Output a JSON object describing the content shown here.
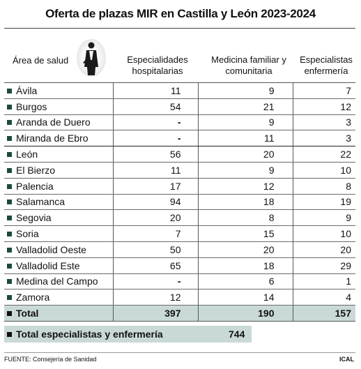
{
  "title": "Oferta de plazas MIR en Castilla y León 2023-2024",
  "headers": {
    "area": "Área de salud",
    "col1": "Especialidades hospitalarias",
    "col2": "Medicina familiar y comunitaria",
    "col3": "Especialistas enfermería"
  },
  "rows": [
    {
      "area": "Ávila",
      "hosp": "11",
      "mfyc": "9",
      "enf": "7"
    },
    {
      "area": "Burgos",
      "hosp": "54",
      "mfyc": "21",
      "enf": "12"
    },
    {
      "area": "Aranda de Duero",
      "hosp": "-",
      "mfyc": "9",
      "enf": "3"
    },
    {
      "area": "Miranda de Ebro",
      "hosp": "-",
      "mfyc": "11",
      "enf": "3"
    },
    {
      "area": "León",
      "hosp": "56",
      "mfyc": "20",
      "enf": "22"
    },
    {
      "area": "El Bierzo",
      "hosp": "11",
      "mfyc": "9",
      "enf": "10"
    },
    {
      "area": "Palencia",
      "hosp": "17",
      "mfyc": "12",
      "enf": "8"
    },
    {
      "area": "Salamanca",
      "hosp": "94",
      "mfyc": "18",
      "enf": "19"
    },
    {
      "area": "Segovia",
      "hosp": "20",
      "mfyc": "8",
      "enf": "9"
    },
    {
      "area": "Soria",
      "hosp": "7",
      "mfyc": "15",
      "enf": "10"
    },
    {
      "area": "Valladolid Oeste",
      "hosp": "50",
      "mfyc": "20",
      "enf": "20"
    },
    {
      "area": "Valladolid Este",
      "hosp": "65",
      "mfyc": "18",
      "enf": "29"
    },
    {
      "area": "Medina del Campo",
      "hosp": "-",
      "mfyc": "6",
      "enf": "1"
    },
    {
      "area": "Zamora",
      "hosp": "12",
      "mfyc": "14",
      "enf": "4"
    }
  ],
  "total": {
    "label": "Total",
    "hosp": "397",
    "mfyc": "190",
    "enf": "157"
  },
  "grand_total": {
    "label": "Total especialistas y enfermería",
    "value": "744"
  },
  "colors": {
    "marker": "#1d4a3c",
    "total_bg": "#c9d9d7"
  },
  "footer": {
    "source": "FUENTE: Consejería de Sanidad",
    "brand": "ICAL"
  }
}
